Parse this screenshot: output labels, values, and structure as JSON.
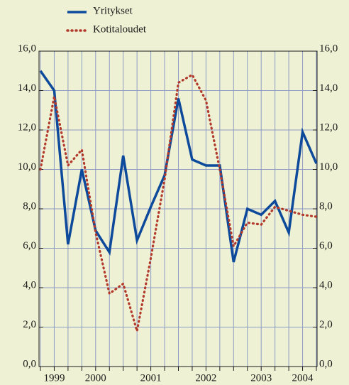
{
  "chart_data": {
    "type": "line",
    "categories": [
      null,
      "1999",
      null,
      null,
      "2000",
      null,
      null,
      null,
      "2001",
      null,
      null,
      null,
      "2002",
      null,
      null,
      null,
      "2003",
      null,
      null,
      "2004",
      null
    ],
    "series": [
      {
        "name": "Yritykset",
        "color": "#0d4a9b",
        "style": "solid",
        "values": [
          15.0,
          14.0,
          6.2,
          10.0,
          6.9,
          5.8,
          10.7,
          6.4,
          8.1,
          9.7,
          13.6,
          10.5,
          10.2,
          10.2,
          5.3,
          8.0,
          7.7,
          8.4,
          6.8,
          11.9,
          10.3
        ]
      },
      {
        "name": "Kotitaloudet",
        "color": "#b23a2c",
        "style": "dotted",
        "values": [
          10.0,
          13.7,
          10.2,
          11.0,
          6.8,
          3.7,
          4.2,
          1.8,
          5.5,
          9.5,
          14.4,
          14.8,
          13.5,
          10.0,
          6.1,
          7.3,
          7.2,
          8.1,
          7.9,
          7.7,
          7.6
        ]
      }
    ],
    "ylim": [
      0,
      16
    ],
    "yticks": [
      {
        "value": 0,
        "label": "0,0"
      },
      {
        "value": 2,
        "label": "2,0"
      },
      {
        "value": 4,
        "label": "4,0"
      },
      {
        "value": 6,
        "label": "6,0"
      },
      {
        "value": 8,
        "label": "8,0"
      },
      {
        "value": 10,
        "label": "10,0"
      },
      {
        "value": 12,
        "label": "12,0"
      },
      {
        "value": 14,
        "label": "14,0"
      },
      {
        "value": 16,
        "label": "16,0"
      }
    ],
    "y2lim": [
      0,
      16
    ],
    "y2ticks": [
      {
        "value": 0,
        "label": "0,0"
      },
      {
        "value": 2,
        "label": "2,0"
      },
      {
        "value": 4,
        "label": "4,0"
      },
      {
        "value": 6,
        "label": "6,0"
      },
      {
        "value": 8,
        "label": "8,0"
      },
      {
        "value": 10,
        "label": "10,0"
      },
      {
        "value": 12,
        "label": "12,0"
      },
      {
        "value": 14,
        "label": "14,0"
      },
      {
        "value": 16,
        "label": "16,0"
      }
    ],
    "grid": true,
    "legend": "top-left"
  }
}
